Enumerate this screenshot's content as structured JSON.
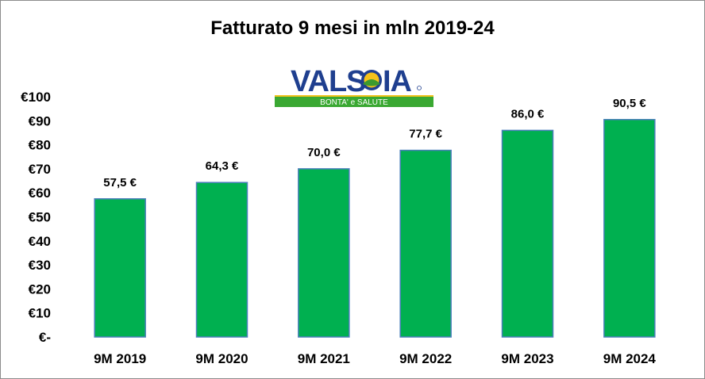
{
  "chart_data": {
    "type": "bar",
    "title": "Fatturato  9 mesi in mln 2019-24",
    "categories": [
      "9M 2019",
      "9M 2020",
      "9M 2021",
      "9M 2022",
      "9M 2023",
      "9M 2024"
    ],
    "values": [
      57.5,
      64.3,
      70.0,
      77.7,
      86.0,
      90.5
    ],
    "data_labels": [
      "57,5 €",
      "64,3 €",
      "70,0 €",
      "77,7 €",
      "86,0 €",
      "90,5 €"
    ],
    "yticks": [
      "€-",
      "€10",
      "€20",
      "€30",
      "€40",
      "€50",
      "€60",
      "€70",
      "€80",
      "€90",
      "€100"
    ],
    "ylim": [
      0,
      100
    ],
    "xlabel": "",
    "ylabel": "",
    "grid": false,
    "legend": "none",
    "bar_color": "#00b050",
    "bar_border_color": "#4a7ebb"
  },
  "logo": {
    "brand": "VALSOIA",
    "tagline": "BONTA' e SALUTE"
  }
}
